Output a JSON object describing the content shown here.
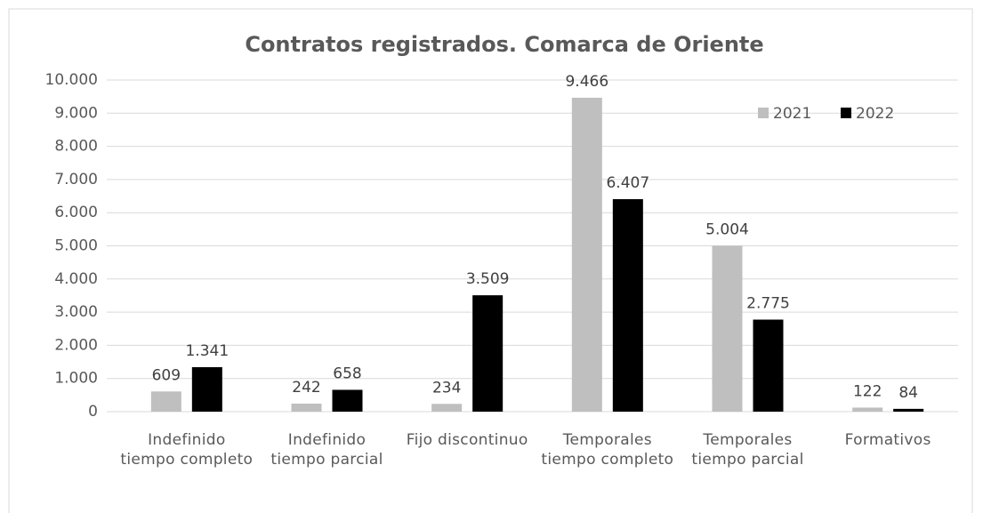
{
  "chart_data": {
    "type": "bar",
    "title": "Contratos registrados. Comarca de Oriente",
    "categories": [
      "Indefinido tiempo completo",
      "Indefinido tiempo parcial",
      "Fijo discontinuo",
      "Temporales tiempo completo",
      "Temporales tiempo parcial",
      "Formativos"
    ],
    "series": [
      {
        "name": "2021",
        "color": "#bfbfbf",
        "values": [
          609,
          242,
          234,
          9466,
          5004,
          122
        ],
        "value_labels": [
          "609",
          "242",
          "234",
          "9.466",
          "5.004",
          "122"
        ]
      },
      {
        "name": "2022",
        "color": "#000000",
        "values": [
          1341,
          658,
          3509,
          6407,
          2775,
          84
        ],
        "value_labels": [
          "1.341",
          "658",
          "3.509",
          "6.407",
          "2.775",
          "84"
        ]
      }
    ],
    "ylim": [
      0,
      10000
    ],
    "yticks": [
      0,
      {
        "value": 1000,
        "label": "1.000"
      },
      {
        "value": 2000,
        "label": "2.000"
      },
      {
        "value": 3000,
        "label": "3.000"
      },
      {
        "value": 4000,
        "label": "4.000"
      },
      {
        "value": 5000,
        "label": "5.000"
      },
      {
        "value": 6000,
        "label": "6.000"
      },
      {
        "value": 7000,
        "label": "7.000"
      },
      {
        "value": 8000,
        "label": "8.000"
      },
      {
        "value": 9000,
        "label": "9.000"
      },
      {
        "value": 10000,
        "label": "10.000"
      }
    ],
    "grid": true,
    "legend": "top-right"
  }
}
